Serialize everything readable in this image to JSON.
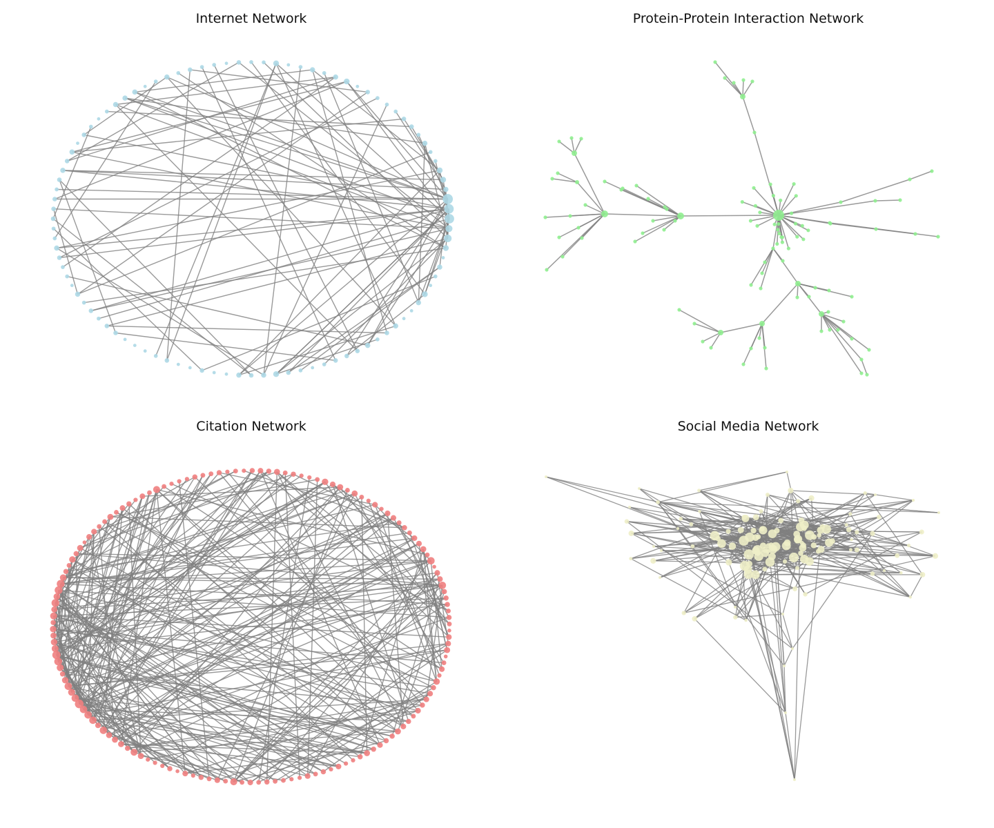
{
  "panels": [
    {
      "key": "internet",
      "title": "Internet Network",
      "node_color": "#add8e6",
      "edge_color": "#808080"
    },
    {
      "key": "ppi",
      "title": "Protein-Protein Interaction Network",
      "node_color": "#90ee90",
      "edge_color": "#808080"
    },
    {
      "key": "citation",
      "title": "Citation Network",
      "node_color": "#f08080",
      "edge_color": "#808080"
    },
    {
      "key": "social",
      "title": "Social Media Network",
      "node_color": "#eeeec8",
      "edge_color": "#808080"
    }
  ]
}
